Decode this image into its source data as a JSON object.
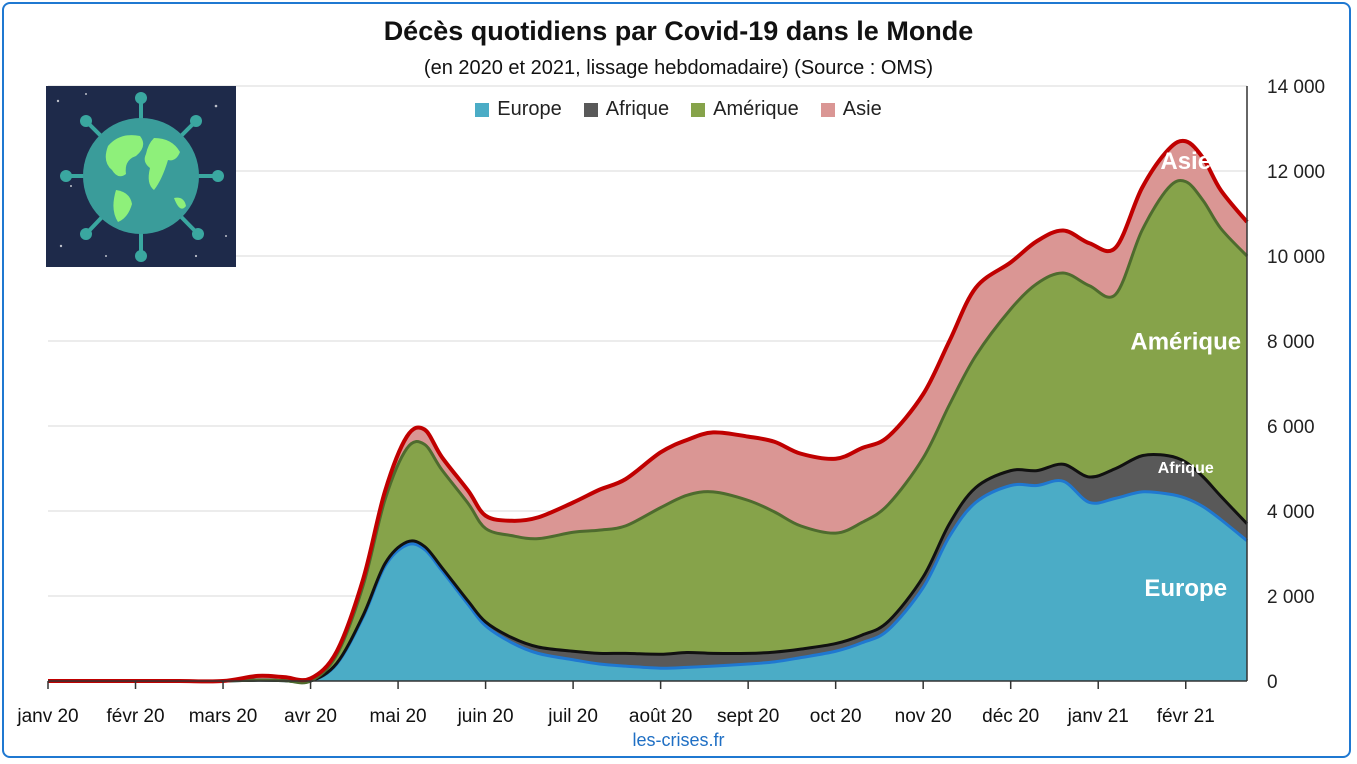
{
  "title": "Décès quotidiens par Covid-19 dans le Monde",
  "subtitle": "(en 2020 et 2021, lissage hebdomadaire) (Source : OMS)",
  "source": "les-crises.fr",
  "chart_data": {
    "type": "area",
    "stacked": true,
    "x_labels": [
      "janv 20",
      "févr 20",
      "mars 20",
      "avr 20",
      "mai 20",
      "juin 20",
      "juil 20",
      "août 20",
      "sept 20",
      "oct 20",
      "nov 20",
      "déc 20",
      "janv 21",
      "févr 21"
    ],
    "yticks": [
      "14 000",
      "12 000",
      "10 000",
      "8 000",
      "6 000",
      "4 000",
      "2 000",
      "0"
    ],
    "ylim": [
      0,
      14000
    ],
    "y_axis_side": "right",
    "grid": true,
    "legend_position": "top",
    "area_labels": [
      "Europe",
      "Afrique",
      "Amérique",
      "Asie"
    ],
    "x": [
      0,
      0.5,
      1,
      1.5,
      2,
      2.4,
      2.7,
      3,
      3.3,
      3.6,
      3.85,
      4.1,
      4.3,
      4.5,
      4.8,
      5,
      5.3,
      5.6,
      6,
      6.3,
      6.6,
      7,
      7.3,
      7.6,
      8,
      8.3,
      8.6,
      9,
      9.3,
      9.6,
      10,
      10.3,
      10.6,
      11,
      11.3,
      11.6,
      11.9,
      12.2,
      12.5,
      12.8,
      13,
      13.2,
      13.4,
      13.7
    ],
    "series": [
      {
        "name": "Europe",
        "color": "#4bacc6",
        "line_color": "#1f78d1",
        "values": [
          0,
          0,
          0,
          0,
          0,
          20,
          10,
          0,
          400,
          1500,
          2700,
          3200,
          3100,
          2600,
          1800,
          1300,
          900,
          650,
          500,
          400,
          350,
          300,
          320,
          350,
          400,
          450,
          550,
          700,
          900,
          1200,
          2200,
          3400,
          4200,
          4600,
          4600,
          4700,
          4200,
          4300,
          4450,
          4400,
          4300,
          4100,
          3800,
          3300
        ]
      },
      {
        "name": "Afrique",
        "color": "#595959",
        "line_color": "#111111",
        "values": [
          0,
          0,
          0,
          0,
          0,
          0,
          0,
          0,
          20,
          40,
          60,
          70,
          70,
          70,
          80,
          90,
          120,
          150,
          200,
          250,
          300,
          330,
          350,
          300,
          250,
          230,
          200,
          180,
          180,
          200,
          250,
          300,
          350,
          350,
          350,
          400,
          600,
          700,
          850,
          900,
          850,
          700,
          550,
          400
        ]
      },
      {
        "name": "Amérique",
        "color": "#86a34a",
        "line_color": "#4e6b2e",
        "values": [
          0,
          0,
          0,
          0,
          0,
          0,
          0,
          0,
          200,
          700,
          1500,
          2200,
          2400,
          2300,
          2300,
          2200,
          2400,
          2550,
          2800,
          2900,
          3000,
          3450,
          3700,
          3800,
          3600,
          3300,
          2900,
          2600,
          2650,
          2750,
          2800,
          2800,
          3100,
          3800,
          4400,
          4500,
          4500,
          4100,
          5300,
          6300,
          6600,
          6500,
          6300,
          6300
        ]
      },
      {
        "name": "Asie",
        "color": "#da9694",
        "line_color": "#c00000",
        "values": [
          0,
          0,
          0,
          0,
          0,
          100,
          80,
          60,
          80,
          150,
          200,
          280,
          350,
          300,
          300,
          300,
          350,
          500,
          700,
          950,
          1100,
          1300,
          1300,
          1400,
          1500,
          1650,
          1700,
          1750,
          1750,
          1600,
          1500,
          1500,
          1600,
          1100,
          1000,
          1000,
          1000,
          1100,
          1000,
          900,
          950,
          1000,
          900,
          800
        ]
      }
    ]
  }
}
